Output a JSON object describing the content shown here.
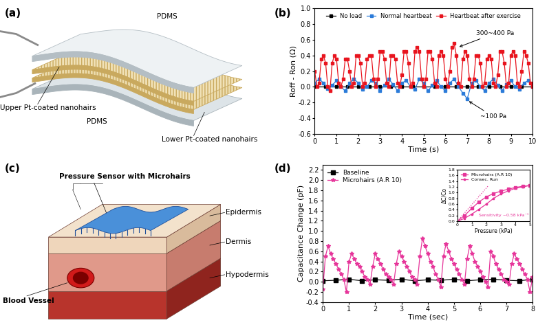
{
  "panel_labels": [
    "(a)",
    "(b)",
    "(c)",
    "(d)"
  ],
  "diagrams": {
    "a": {
      "labels": {
        "top": "PDMS",
        "upper_hairs": "Upper Pt-coated nanohairs",
        "middle": "PDMS",
        "lower_hairs": "Lower Pt-coated nanohairs"
      }
    },
    "c": {
      "labels": {
        "sensor": "Pressure Sensor with Microhairs",
        "vessel": "Blood Vessel",
        "layers": [
          "Epidermis",
          "Dermis",
          "Hypodermis"
        ]
      }
    }
  },
  "chart_data": [
    {
      "type": "line",
      "x_label": "Time (s)",
      "y_label": "Roff - Ron (Ω)",
      "xlim": [
        0,
        10
      ],
      "ylim": [
        -0.6,
        1.0
      ],
      "xticks": [
        0,
        1,
        2,
        3,
        4,
        5,
        6,
        7,
        8,
        9,
        10
      ],
      "yticks": [
        -0.6,
        -0.4,
        -0.2,
        0.0,
        0.2,
        0.4,
        0.6,
        0.8,
        1.0
      ],
      "legend": "upper center",
      "grid": false,
      "annotations": [
        "300~400 Pa",
        "~100 Pa"
      ],
      "series": [
        {
          "name": "No load",
          "color": "#000000",
          "marker": "square",
          "line_style": "solid",
          "x": [
            0,
            0.5,
            1,
            1.5,
            2,
            2.5,
            3,
            3.5,
            4,
            4.5,
            5,
            5.5,
            6,
            6.5,
            7,
            7.5,
            8,
            8.5,
            9,
            9.5,
            10
          ],
          "values": [
            0.0,
            0.0,
            0.0,
            0.0,
            0.0,
            0.0,
            0.0,
            0.0,
            0.0,
            0.0,
            0.0,
            0.0,
            0.0,
            0.0,
            0.0,
            0.0,
            0.0,
            0.0,
            0.0,
            0.0,
            0.0
          ]
        },
        {
          "name": "Normal heartbeat",
          "color": "#2b7bd9",
          "marker": "square",
          "line_style": "solid",
          "x": [
            0.0,
            0.2,
            0.4,
            0.6,
            0.8,
            1.0,
            1.2,
            1.4,
            1.6,
            1.8,
            2.0,
            2.2,
            2.4,
            2.6,
            2.8,
            3.0,
            3.2,
            3.4,
            3.6,
            3.8,
            4.0,
            4.2,
            4.4,
            4.6,
            4.8,
            5.0,
            5.2,
            5.4,
            5.6,
            5.8,
            6.0,
            6.2,
            6.4,
            6.6,
            6.8,
            7.0,
            7.2,
            7.4,
            7.6,
            7.8,
            8.0,
            8.2,
            8.4,
            8.6,
            8.8,
            9.0,
            9.2,
            9.4,
            9.6,
            9.8,
            10.0
          ],
          "values": [
            0.05,
            0.1,
            0.05,
            -0.02,
            0.02,
            0.08,
            0.0,
            -0.05,
            0.05,
            0.1,
            0.05,
            -0.03,
            0.0,
            0.08,
            0.05,
            -0.05,
            0.02,
            0.1,
            0.03,
            -0.05,
            0.05,
            0.08,
            0.0,
            -0.03,
            0.1,
            0.05,
            -0.05,
            0.02,
            0.08,
            0.0,
            -0.05,
            0.05,
            0.1,
            0.0,
            -0.08,
            -0.15,
            0.05,
            0.08,
            0.0,
            -0.05,
            0.05,
            0.1,
            0.02,
            -0.05,
            0.03,
            0.08,
            0.0,
            -0.03,
            0.05,
            0.08,
            0.0
          ]
        },
        {
          "name": "Heartbeat after exercise",
          "color": "#e8141e",
          "marker": "square",
          "line_style": "solid",
          "x": [
            0.0,
            0.1,
            0.2,
            0.3,
            0.4,
            0.5,
            0.6,
            0.7,
            0.8,
            0.9,
            1.0,
            1.1,
            1.2,
            1.3,
            1.4,
            1.5,
            1.6,
            1.7,
            1.8,
            1.9,
            2.0,
            2.1,
            2.2,
            2.3,
            2.4,
            2.5,
            2.6,
            2.7,
            2.8,
            2.9,
            3.0,
            3.1,
            3.2,
            3.3,
            3.4,
            3.5,
            3.6,
            3.7,
            3.8,
            3.9,
            4.0,
            4.1,
            4.2,
            4.3,
            4.4,
            4.5,
            4.6,
            4.7,
            4.8,
            4.9,
            5.0,
            5.1,
            5.2,
            5.3,
            5.4,
            5.5,
            5.6,
            5.7,
            5.8,
            5.9,
            6.0,
            6.1,
            6.2,
            6.3,
            6.4,
            6.5,
            6.6,
            6.7,
            6.8,
            6.9,
            7.0,
            7.1,
            7.2,
            7.3,
            7.4,
            7.5,
            7.6,
            7.7,
            7.8,
            7.9,
            8.0,
            8.1,
            8.2,
            8.3,
            8.4,
            8.5,
            8.6,
            8.7,
            8.8,
            8.9,
            9.0,
            9.1,
            9.2,
            9.3,
            9.4,
            9.5,
            9.6,
            9.7,
            9.8,
            9.9,
            10.0
          ],
          "values": [
            0.2,
            0.0,
            0.05,
            0.35,
            0.4,
            0.3,
            0.0,
            -0.05,
            0.3,
            0.4,
            0.35,
            0.05,
            0.0,
            0.1,
            0.35,
            0.35,
            0.2,
            0.0,
            0.05,
            0.4,
            0.4,
            0.3,
            0.0,
            0.05,
            0.35,
            0.4,
            0.4,
            0.1,
            0.0,
            0.1,
            0.45,
            0.45,
            0.35,
            0.05,
            0.0,
            0.4,
            0.4,
            0.35,
            0.05,
            0.0,
            0.15,
            0.45,
            0.45,
            0.3,
            0.0,
            0.05,
            0.45,
            0.5,
            0.45,
            0.1,
            0.0,
            0.1,
            0.45,
            0.45,
            0.35,
            0.05,
            0.0,
            0.4,
            0.45,
            0.4,
            0.1,
            0.0,
            0.2,
            0.5,
            0.55,
            0.4,
            0.05,
            0.0,
            0.35,
            0.45,
            0.4,
            0.1,
            0.0,
            0.1,
            0.4,
            0.4,
            0.3,
            0.0,
            0.05,
            0.35,
            0.4,
            0.35,
            0.05,
            0.0,
            0.15,
            0.45,
            0.45,
            0.3,
            0.0,
            0.05,
            0.4,
            0.45,
            0.4,
            0.05,
            0.0,
            0.2,
            0.45,
            0.4,
            0.3,
            0.05,
            0.0
          ]
        }
      ]
    },
    {
      "type": "line",
      "x_label": "Time (sec)",
      "y_label": "Capacitance Change (pF)",
      "xlim": [
        0,
        8
      ],
      "ylim": [
        -0.4,
        2.3
      ],
      "xticks": [
        0,
        1,
        2,
        3,
        4,
        5,
        6,
        7,
        8
      ],
      "yticks": [
        -0.4,
        -0.2,
        0.0,
        0.2,
        0.4,
        0.6,
        0.8,
        1.0,
        1.2,
        1.4,
        1.6,
        1.8,
        2.0,
        2.2
      ],
      "legend": "upper left",
      "grid": false,
      "series": [
        {
          "name": "Baseline",
          "color": "#000000",
          "marker": "square",
          "line_style": "solid",
          "x": [
            0,
            0.5,
            1,
            1.5,
            2,
            2.5,
            3,
            3.5,
            4,
            4.5,
            5,
            5.5,
            6,
            6.5,
            7,
            7.5,
            8
          ],
          "values": [
            0.02,
            0.03,
            0.05,
            0.02,
            0.04,
            0.03,
            0.05,
            0.02,
            0.04,
            0.03,
            0.05,
            0.02,
            0.04,
            0.05,
            0.03,
            0.02,
            0.05
          ]
        },
        {
          "name": "Microhairs (A.R 10)",
          "color": "#e6359a",
          "marker": "star",
          "line_style": "solid",
          "x": [
            0.0,
            0.1,
            0.2,
            0.3,
            0.4,
            0.5,
            0.6,
            0.7,
            0.8,
            0.9,
            1.0,
            1.1,
            1.2,
            1.3,
            1.4,
            1.5,
            1.6,
            1.7,
            1.8,
            1.9,
            2.0,
            2.1,
            2.2,
            2.3,
            2.4,
            2.5,
            2.6,
            2.7,
            2.8,
            2.9,
            3.0,
            3.1,
            3.2,
            3.3,
            3.4,
            3.5,
            3.6,
            3.7,
            3.8,
            3.9,
            4.0,
            4.1,
            4.2,
            4.3,
            4.4,
            4.5,
            4.6,
            4.7,
            4.8,
            4.9,
            5.0,
            5.1,
            5.2,
            5.3,
            5.4,
            5.5,
            5.6,
            5.7,
            5.8,
            5.9,
            6.0,
            6.1,
            6.2,
            6.3,
            6.4,
            6.5,
            6.6,
            6.7,
            6.8,
            6.9,
            7.0,
            7.1,
            7.2,
            7.3,
            7.4,
            7.5,
            7.6,
            7.7,
            7.8,
            7.9,
            8.0
          ],
          "values": [
            -0.15,
            0.5,
            0.7,
            0.55,
            0.45,
            0.35,
            0.25,
            0.15,
            0.05,
            -0.2,
            0.4,
            0.55,
            0.45,
            0.35,
            0.3,
            0.2,
            0.1,
            0.05,
            -0.05,
            0.3,
            0.55,
            0.45,
            0.35,
            0.25,
            0.15,
            0.1,
            0.05,
            -0.05,
            0.35,
            0.6,
            0.5,
            0.4,
            0.3,
            0.2,
            0.1,
            0.05,
            -0.05,
            0.5,
            0.85,
            0.7,
            0.55,
            0.4,
            0.3,
            0.15,
            0.05,
            -0.1,
            0.5,
            0.75,
            0.6,
            0.45,
            0.35,
            0.25,
            0.15,
            0.05,
            -0.05,
            0.45,
            0.7,
            0.55,
            0.4,
            0.3,
            0.2,
            0.1,
            0.0,
            -0.1,
            0.6,
            0.5,
            0.35,
            0.25,
            0.15,
            0.05,
            0.0,
            -0.05,
            0.35,
            0.55,
            0.45,
            0.35,
            0.25,
            0.15,
            0.05,
            -0.2,
            0.1
          ]
        }
      ]
    },
    {
      "type": "line",
      "x_label": "Pressure (kPa)",
      "y_label": "ΔC/Co",
      "xlim": [
        0,
        5
      ],
      "ylim": [
        0,
        1.8
      ],
      "xticks": [
        0,
        1,
        2,
        3,
        4,
        5
      ],
      "yticks": [
        0.0,
        0.2,
        0.4,
        0.6,
        0.8,
        1.0,
        1.2,
        1.4,
        1.6,
        1.8
      ],
      "legend": "upper left",
      "grid": false,
      "annotations": [
        "Sensitivity ~0.58 kPa⁻¹"
      ],
      "series": [
        {
          "name": "Microhairs (A.R 10)",
          "color": "#e6359a",
          "marker": "square",
          "line_style": "solid",
          "x": [
            0,
            0.5,
            1,
            1.5,
            2,
            2.5,
            3,
            3.5,
            4,
            4.5,
            5
          ],
          "values": [
            0.0,
            0.2,
            0.45,
            0.68,
            0.85,
            0.97,
            1.05,
            1.12,
            1.18,
            1.22,
            1.25
          ]
        },
        {
          "name": "Consec. Run",
          "color": "#e6359a",
          "marker": "star",
          "line_style": "solid",
          "x": [
            0,
            0.5,
            1,
            1.5,
            2,
            2.5,
            3,
            3.5,
            4,
            4.5,
            5
          ],
          "values": [
            0.0,
            0.1,
            0.25,
            0.42,
            0.6,
            0.8,
            0.95,
            1.06,
            1.15,
            1.2,
            1.25
          ]
        },
        {
          "color": "#e6359a",
          "marker": "none",
          "line_style": "dotted",
          "x": [
            0,
            2.1
          ],
          "values": [
            0.0,
            1.22
          ]
        }
      ]
    }
  ]
}
